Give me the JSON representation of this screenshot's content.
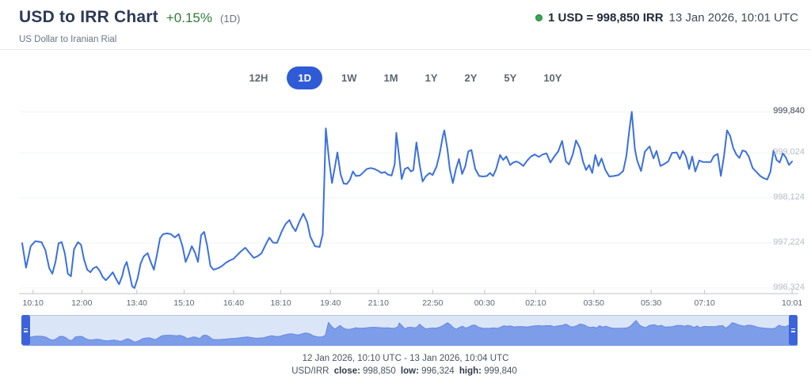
{
  "header": {
    "title": "USD to IRR Chart",
    "change": "+0.15%",
    "change_period": "(1D)",
    "subtitle": "US Dollar to Iranian Rial",
    "quote_rate": "1 USD = 998,850 IRR",
    "quote_time": "13 Jan 2026, 10:01 UTC"
  },
  "range_buttons": {
    "items": [
      {
        "label": "12H",
        "active": false
      },
      {
        "label": "1D",
        "active": true
      },
      {
        "label": "1W",
        "active": false
      },
      {
        "label": "1M",
        "active": false
      },
      {
        "label": "1Y",
        "active": false
      },
      {
        "label": "2Y",
        "active": false
      },
      {
        "label": "5Y",
        "active": false
      },
      {
        "label": "10Y",
        "active": false
      }
    ]
  },
  "colors": {
    "accent_blue": "#2f5bd7",
    "line_blue": "#3b70dd",
    "green": "#2e7d3a",
    "grid": "#f2f3f5",
    "axis": "#bfc3c9",
    "nav_fill": "#7e9de8",
    "nav_line": "#6287e2",
    "nav_bg": "#dbe5f8"
  },
  "chart_data": {
    "type": "line",
    "title": "USD to IRR (1D)",
    "series_name": "USD/IRR",
    "ylim": [
      996100,
      999950
    ],
    "grid": true,
    "yaxis_ticks": [
      {
        "value": 999840,
        "label": "999,840",
        "strong": true
      },
      {
        "value": 999024,
        "label": "999,024",
        "strong": false
      },
      {
        "value": 998124,
        "label": "998,124",
        "strong": false
      },
      {
        "value": 997224,
        "label": "997,224",
        "strong": false
      },
      {
        "value": 996324,
        "label": "996,324",
        "strong": false
      }
    ],
    "xaxis_ticks": [
      {
        "label": "10:10",
        "pos": 0.014
      },
      {
        "label": "12:00",
        "pos": 0.077
      },
      {
        "label": "13:40",
        "pos": 0.148
      },
      {
        "label": "15:10",
        "pos": 0.209
      },
      {
        "label": "16:40",
        "pos": 0.273
      },
      {
        "label": "18:10",
        "pos": 0.334
      },
      {
        "label": "19:40",
        "pos": 0.398
      },
      {
        "label": "21:10",
        "pos": 0.46
      },
      {
        "label": "22:50",
        "pos": 0.53
      },
      {
        "label": "00:30",
        "pos": 0.597
      },
      {
        "label": "02:10",
        "pos": 0.663
      },
      {
        "label": "03:50",
        "pos": 0.738
      },
      {
        "label": "05:30",
        "pos": 0.812
      },
      {
        "label": "07:10",
        "pos": 0.881
      },
      {
        "label": "10:01",
        "pos": 0.994
      }
    ],
    "points": [
      [
        0.0,
        997220
      ],
      [
        0.005,
        996730
      ],
      [
        0.011,
        997160
      ],
      [
        0.017,
        997260
      ],
      [
        0.025,
        997240
      ],
      [
        0.03,
        997080
      ],
      [
        0.035,
        996720
      ],
      [
        0.039,
        996610
      ],
      [
        0.043,
        996850
      ],
      [
        0.047,
        997220
      ],
      [
        0.051,
        997240
      ],
      [
        0.055,
        997020
      ],
      [
        0.059,
        996610
      ],
      [
        0.063,
        996560
      ],
      [
        0.067,
        997100
      ],
      [
        0.072,
        997240
      ],
      [
        0.076,
        997190
      ],
      [
        0.08,
        996890
      ],
      [
        0.084,
        996690
      ],
      [
        0.088,
        996640
      ],
      [
        0.092,
        996720
      ],
      [
        0.096,
        996750
      ],
      [
        0.1,
        996670
      ],
      [
        0.104,
        996545
      ],
      [
        0.108,
        996480
      ],
      [
        0.112,
        996545
      ],
      [
        0.117,
        996640
      ],
      [
        0.121,
        996515
      ],
      [
        0.125,
        996400
      ],
      [
        0.129,
        996560
      ],
      [
        0.132,
        996750
      ],
      [
        0.135,
        996845
      ],
      [
        0.139,
        996580
      ],
      [
        0.142,
        996360
      ],
      [
        0.145,
        996324
      ],
      [
        0.149,
        996515
      ],
      [
        0.153,
        996815
      ],
      [
        0.157,
        996955
      ],
      [
        0.162,
        997020
      ],
      [
        0.166,
        996845
      ],
      [
        0.17,
        996690
      ],
      [
        0.174,
        996990
      ],
      [
        0.178,
        997320
      ],
      [
        0.182,
        997400
      ],
      [
        0.187,
        997415
      ],
      [
        0.192,
        997400
      ],
      [
        0.197,
        997335
      ],
      [
        0.202,
        997400
      ],
      [
        0.207,
        997160
      ],
      [
        0.211,
        996845
      ],
      [
        0.215,
        996990
      ],
      [
        0.219,
        997160
      ],
      [
        0.223,
        997035
      ],
      [
        0.227,
        996845
      ],
      [
        0.231,
        997380
      ],
      [
        0.235,
        997445
      ],
      [
        0.239,
        997160
      ],
      [
        0.243,
        996765
      ],
      [
        0.247,
        996690
      ],
      [
        0.253,
        996720
      ],
      [
        0.258,
        996765
      ],
      [
        0.263,
        996830
      ],
      [
        0.268,
        996875
      ],
      [
        0.273,
        996910
      ],
      [
        0.278,
        996990
      ],
      [
        0.283,
        997065
      ],
      [
        0.288,
        997130
      ],
      [
        0.293,
        997035
      ],
      [
        0.299,
        996925
      ],
      [
        0.304,
        996960
      ],
      [
        0.309,
        997020
      ],
      [
        0.314,
        997180
      ],
      [
        0.319,
        997330
      ],
      [
        0.324,
        997230
      ],
      [
        0.329,
        997225
      ],
      [
        0.335,
        997450
      ],
      [
        0.34,
        997600
      ],
      [
        0.345,
        997680
      ],
      [
        0.349,
        997550
      ],
      [
        0.353,
        997460
      ],
      [
        0.358,
        997650
      ],
      [
        0.363,
        997810
      ],
      [
        0.368,
        997640
      ],
      [
        0.372,
        997350
      ],
      [
        0.378,
        997160
      ],
      [
        0.384,
        997145
      ],
      [
        0.388,
        997400
      ],
      [
        0.392,
        999510
      ],
      [
        0.396,
        998900
      ],
      [
        0.4,
        998420
      ],
      [
        0.404,
        998760
      ],
      [
        0.407,
        999030
      ],
      [
        0.411,
        998600
      ],
      [
        0.415,
        998410
      ],
      [
        0.419,
        998400
      ],
      [
        0.423,
        998480
      ],
      [
        0.427,
        998650
      ],
      [
        0.431,
        998560
      ],
      [
        0.436,
        998570
      ],
      [
        0.441,
        998640
      ],
      [
        0.445,
        998700
      ],
      [
        0.45,
        998720
      ],
      [
        0.455,
        998700
      ],
      [
        0.46,
        998660
      ],
      [
        0.464,
        998620
      ],
      [
        0.468,
        998640
      ],
      [
        0.472,
        998590
      ],
      [
        0.477,
        998570
      ],
      [
        0.481,
        998800
      ],
      [
        0.483,
        999420
      ],
      [
        0.487,
        998900
      ],
      [
        0.49,
        998500
      ],
      [
        0.494,
        998700
      ],
      [
        0.498,
        998730
      ],
      [
        0.502,
        998650
      ],
      [
        0.505,
        998680
      ],
      [
        0.509,
        999230
      ],
      [
        0.513,
        998800
      ],
      [
        0.517,
        998450
      ],
      [
        0.521,
        998550
      ],
      [
        0.526,
        998620
      ],
      [
        0.53,
        998580
      ],
      [
        0.535,
        998750
      ],
      [
        0.539,
        999000
      ],
      [
        0.543,
        999350
      ],
      [
        0.545,
        999470
      ],
      [
        0.549,
        999100
      ],
      [
        0.552,
        998700
      ],
      [
        0.556,
        998420
      ],
      [
        0.56,
        998700
      ],
      [
        0.564,
        998900
      ],
      [
        0.568,
        998600
      ],
      [
        0.572,
        998750
      ],
      [
        0.576,
        999050
      ],
      [
        0.58,
        999080
      ],
      [
        0.585,
        998700
      ],
      [
        0.59,
        998560
      ],
      [
        0.595,
        998550
      ],
      [
        0.6,
        998560
      ],
      [
        0.604,
        998620
      ],
      [
        0.608,
        998560
      ],
      [
        0.612,
        998700
      ],
      [
        0.617,
        998980
      ],
      [
        0.621,
        998880
      ],
      [
        0.625,
        998950
      ],
      [
        0.63,
        998780
      ],
      [
        0.634,
        998830
      ],
      [
        0.638,
        998850
      ],
      [
        0.642,
        998820
      ],
      [
        0.647,
        998760
      ],
      [
        0.652,
        998870
      ],
      [
        0.657,
        998950
      ],
      [
        0.662,
        998990
      ],
      [
        0.667,
        998940
      ],
      [
        0.672,
        998990
      ],
      [
        0.677,
        999010
      ],
      [
        0.682,
        998830
      ],
      [
        0.687,
        998950
      ],
      [
        0.692,
        999050
      ],
      [
        0.697,
        999260
      ],
      [
        0.702,
        998850
      ],
      [
        0.706,
        998790
      ],
      [
        0.711,
        999000
      ],
      [
        0.715,
        999270
      ],
      [
        0.72,
        999120
      ],
      [
        0.724,
        998850
      ],
      [
        0.728,
        998680
      ],
      [
        0.732,
        998780
      ],
      [
        0.736,
        998620
      ],
      [
        0.74,
        998980
      ],
      [
        0.744,
        998760
      ],
      [
        0.748,
        998910
      ],
      [
        0.753,
        998680
      ],
      [
        0.758,
        998550
      ],
      [
        0.764,
        998560
      ],
      [
        0.77,
        998580
      ],
      [
        0.776,
        998660
      ],
      [
        0.78,
        998950
      ],
      [
        0.784,
        999500
      ],
      [
        0.787,
        999840
      ],
      [
        0.791,
        999100
      ],
      [
        0.794,
        998870
      ],
      [
        0.799,
        998660
      ],
      [
        0.804,
        999050
      ],
      [
        0.81,
        999150
      ],
      [
        0.815,
        998910
      ],
      [
        0.819,
        999060
      ],
      [
        0.824,
        998760
      ],
      [
        0.829,
        998800
      ],
      [
        0.834,
        998850
      ],
      [
        0.839,
        999020
      ],
      [
        0.845,
        999030
      ],
      [
        0.849,
        998900
      ],
      [
        0.853,
        999060
      ],
      [
        0.857,
        998950
      ],
      [
        0.861,
        998700
      ],
      [
        0.865,
        998950
      ],
      [
        0.869,
        998650
      ],
      [
        0.874,
        998870
      ],
      [
        0.879,
        998840
      ],
      [
        0.884,
        998840
      ],
      [
        0.889,
        998840
      ],
      [
        0.893,
        998960
      ],
      [
        0.898,
        999000
      ],
      [
        0.902,
        998560
      ],
      [
        0.906,
        998950
      ],
      [
        0.91,
        999470
      ],
      [
        0.914,
        999360
      ],
      [
        0.918,
        999120
      ],
      [
        0.922,
        998990
      ],
      [
        0.926,
        998920
      ],
      [
        0.93,
        999070
      ],
      [
        0.934,
        999050
      ],
      [
        0.938,
        998950
      ],
      [
        0.943,
        998720
      ],
      [
        0.948,
        998640
      ],
      [
        0.953,
        998560
      ],
      [
        0.957,
        998520
      ],
      [
        0.962,
        998490
      ],
      [
        0.966,
        998640
      ],
      [
        0.97,
        999070
      ],
      [
        0.974,
        998880
      ],
      [
        0.978,
        998830
      ],
      [
        0.982,
        999010
      ],
      [
        0.986,
        998930
      ],
      [
        0.99,
        998780
      ],
      [
        0.994,
        998850
      ]
    ]
  },
  "footer": {
    "range_text": "12 Jan 2026, 10:10 UTC - 13 Jan 2026, 10:04 UTC",
    "pair_label": "USD/IRR",
    "close_label": "close:",
    "close_value": "998,850",
    "low_label": "low:",
    "low_value": "996,324",
    "high_label": "high:",
    "high_value": "999,840"
  }
}
